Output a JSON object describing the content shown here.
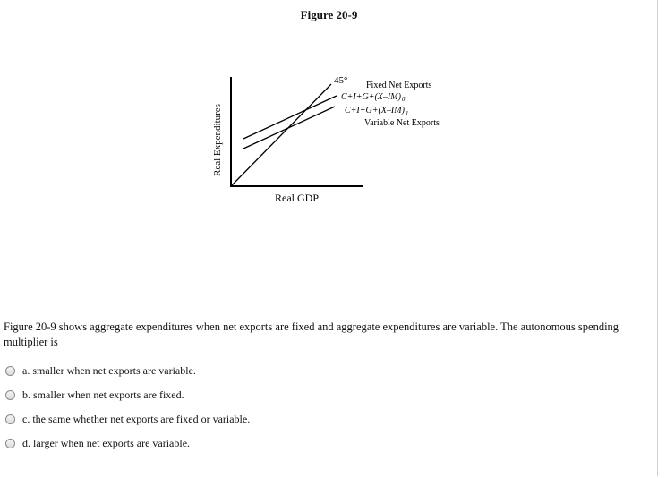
{
  "figure": {
    "title": "Figure 20-9",
    "axis_y_label": "Real Expenditures",
    "axis_x_label": "Real GDP",
    "angle_label": "45°",
    "legend_fixed": "Fixed Net Exports",
    "line_fixed": "C+I+G+(X–IM)",
    "line_fixed_sub": "0",
    "line_variable": "C+I+G+(X–IM)",
    "line_variable_sub": "1",
    "legend_variable": "Variable Net Exports"
  },
  "question": {
    "text": "Figure 20-9 shows aggregate expenditures when net exports are fixed and aggregate expenditures are variable. The autonomous spending multiplier is",
    "options": [
      "a. smaller when net exports are variable.",
      "b. smaller when net exports are fixed.",
      "c. the same whether net exports are fixed or variable.",
      "d. larger when net exports are variable."
    ]
  }
}
